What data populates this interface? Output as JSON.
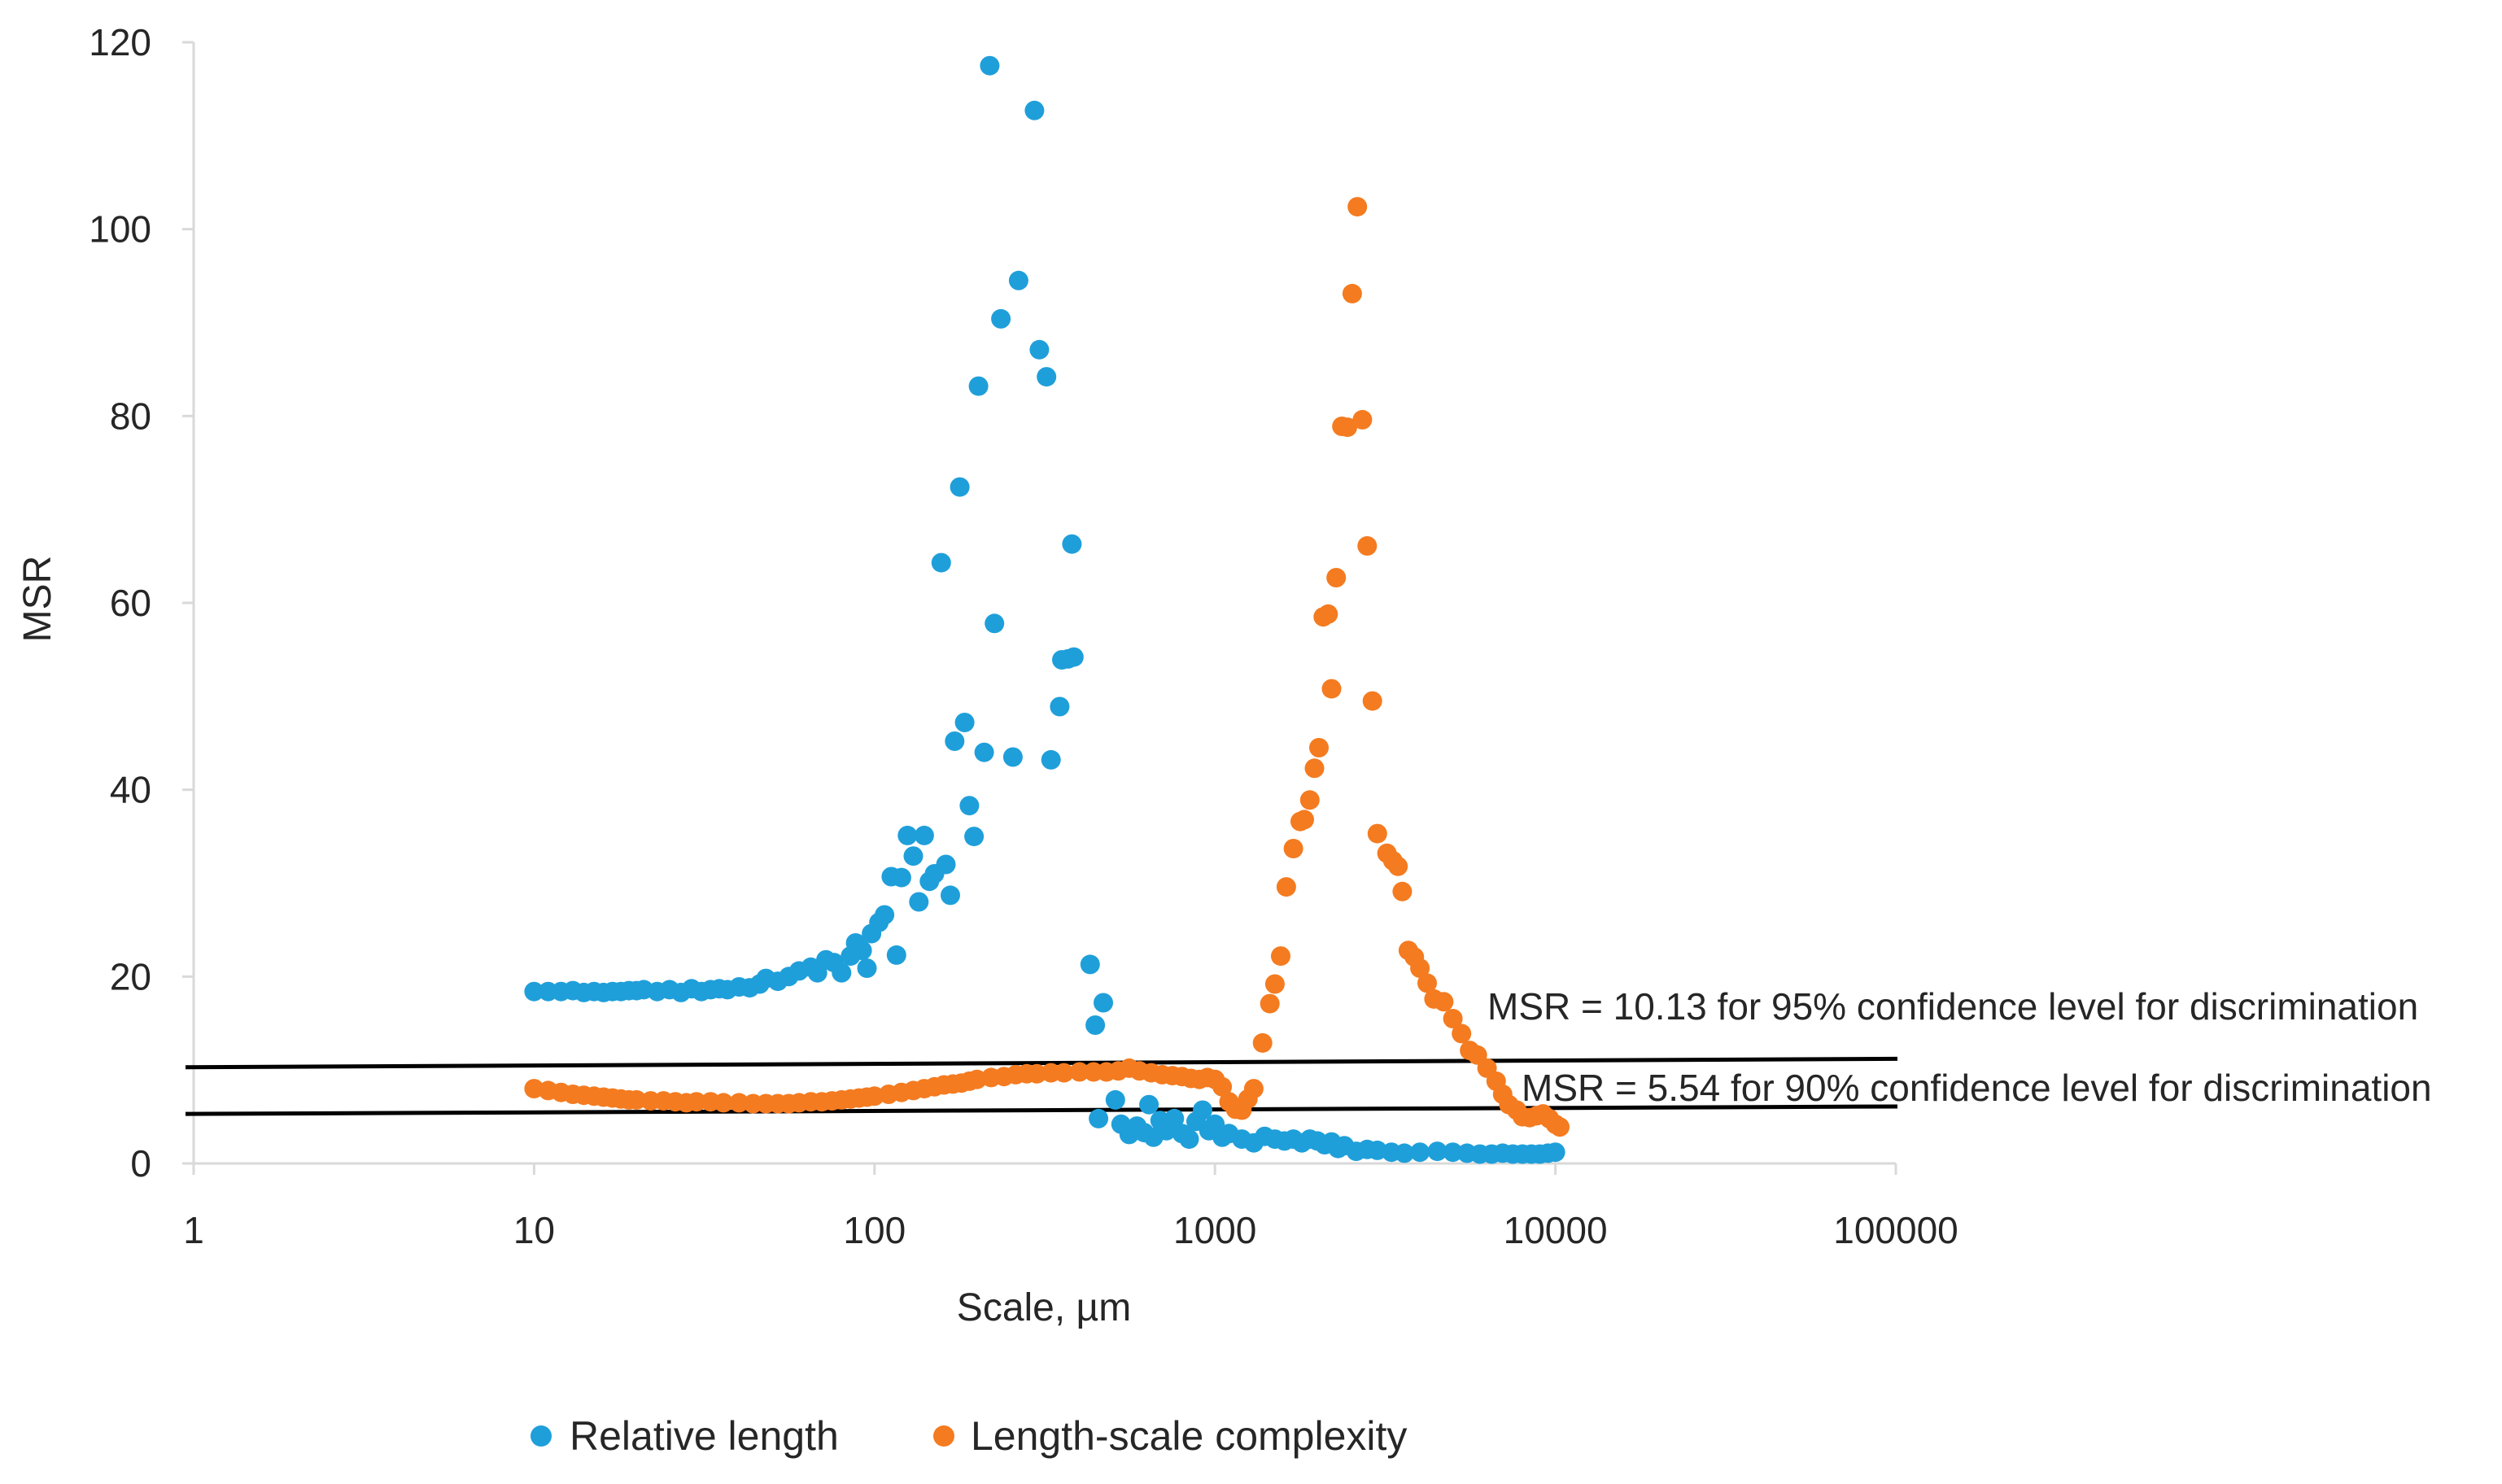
{
  "chart_data": {
    "type": "scatter",
    "title": "",
    "xlabel": "Scale, µm",
    "ylabel": "MSR",
    "xscale": "log",
    "xlim": [
      1,
      100000
    ],
    "ylim": [
      0,
      120
    ],
    "grid": false,
    "legend_position": "bottom",
    "x_ticks": [
      {
        "value": 1,
        "label": "1"
      },
      {
        "value": 10,
        "label": "10"
      },
      {
        "value": 100,
        "label": "100"
      },
      {
        "value": 1000,
        "label": "1000"
      },
      {
        "value": 10000,
        "label": "10000"
      },
      {
        "value": 100000,
        "label": "100000"
      }
    ],
    "y_ticks": [
      {
        "value": 0,
        "label": "0"
      },
      {
        "value": 20,
        "label": "20"
      },
      {
        "value": 40,
        "label": "40"
      },
      {
        "value": 60,
        "label": "60"
      },
      {
        "value": 80,
        "label": "80"
      },
      {
        "value": 100,
        "label": "100"
      },
      {
        "value": 120,
        "label": "120"
      }
    ],
    "reference_lines": [
      {
        "name": "line-95",
        "y_start": 10.3,
        "y_end": 11.2,
        "label": "MSR = 10.13 for 95% confidence level for discrimination",
        "color": "#000000"
      },
      {
        "name": "line-90",
        "y_start": 5.3,
        "y_end": 6.1,
        "label": "MSR = 5.54 for 90% confidence level for discrimination",
        "color": "#000000"
      }
    ],
    "series": [
      {
        "name": "Relative length",
        "color": "#1f9fda",
        "points": [
          [
            10,
            18.4
          ],
          [
            11,
            18.4
          ],
          [
            12,
            18.4
          ],
          [
            13,
            18.5
          ],
          [
            14,
            18.3
          ],
          [
            15,
            18.4
          ],
          [
            16,
            18.3
          ],
          [
            17,
            18.4
          ],
          [
            18,
            18.4
          ],
          [
            19,
            18.5
          ],
          [
            20,
            18.5
          ],
          [
            21,
            18.6
          ],
          [
            23,
            18.4
          ],
          [
            25,
            18.6
          ],
          [
            27,
            18.3
          ],
          [
            29,
            18.7
          ],
          [
            31,
            18.4
          ],
          [
            33,
            18.6
          ],
          [
            35,
            18.7
          ],
          [
            37,
            18.6
          ],
          [
            40,
            18.9
          ],
          [
            43,
            18.8
          ],
          [
            46,
            19.2
          ],
          [
            48,
            19.8
          ],
          [
            52,
            19.5
          ],
          [
            56,
            20.0
          ],
          [
            60,
            20.6
          ],
          [
            65,
            21.0
          ],
          [
            68,
            20.4
          ],
          [
            72,
            21.8
          ],
          [
            76,
            21.5
          ],
          [
            80,
            20.4
          ],
          [
            85,
            22.2
          ],
          [
            88,
            23.6
          ],
          [
            92,
            22.8
          ],
          [
            95,
            20.9
          ],
          [
            98,
            24.6
          ],
          [
            103,
            25.8
          ],
          [
            107,
            26.6
          ],
          [
            112,
            30.7
          ],
          [
            116,
            22.3
          ],
          [
            120,
            30.6
          ],
          [
            125,
            35.1
          ],
          [
            130,
            32.9
          ],
          [
            135,
            28.0
          ],
          [
            140,
            35.1
          ],
          [
            145,
            30.2
          ],
          [
            150,
            31.0
          ],
          [
            157,
            64.3
          ],
          [
            162,
            32.0
          ],
          [
            167,
            28.7
          ],
          [
            172,
            45.2
          ],
          [
            178,
            72.4
          ],
          [
            184,
            47.2
          ],
          [
            190,
            38.3
          ],
          [
            196,
            35.0
          ],
          [
            202,
            83.2
          ],
          [
            210,
            44.0
          ],
          [
            218,
            117.5
          ],
          [
            225,
            57.8
          ],
          [
            235,
            90.4
          ],
          [
            255,
            43.5
          ],
          [
            265,
            94.5
          ],
          [
            295,
            112.7
          ],
          [
            305,
            87.1
          ],
          [
            320,
            84.2
          ],
          [
            330,
            43.2
          ],
          [
            350,
            48.9
          ],
          [
            355,
            53.9
          ],
          [
            370,
            54.0
          ],
          [
            380,
            66.3
          ],
          [
            385,
            54.2
          ],
          [
            430,
            21.3
          ],
          [
            445,
            14.8
          ],
          [
            470,
            17.2
          ],
          [
            455,
            4.8
          ],
          [
            510,
            6.8
          ],
          [
            530,
            4.2
          ],
          [
            560,
            3.1
          ],
          [
            590,
            4.0
          ],
          [
            620,
            3.3
          ],
          [
            640,
            6.3
          ],
          [
            660,
            2.8
          ],
          [
            690,
            4.6
          ],
          [
            720,
            3.5
          ],
          [
            760,
            4.8
          ],
          [
            800,
            3.2
          ],
          [
            840,
            2.6
          ],
          [
            880,
            4.5
          ],
          [
            920,
            5.7
          ],
          [
            960,
            3.5
          ],
          [
            1000,
            4.2
          ],
          [
            1050,
            2.8
          ],
          [
            1100,
            3.2
          ],
          [
            1200,
            2.6
          ],
          [
            1300,
            2.2
          ],
          [
            1400,
            2.9
          ],
          [
            1500,
            2.6
          ],
          [
            1600,
            2.4
          ],
          [
            1700,
            2.6
          ],
          [
            1800,
            2.2
          ],
          [
            1900,
            2.6
          ],
          [
            2000,
            2.4
          ],
          [
            2100,
            2.0
          ],
          [
            2200,
            2.3
          ],
          [
            2300,
            1.6
          ],
          [
            2400,
            1.9
          ],
          [
            2600,
            1.3
          ],
          [
            2800,
            1.5
          ],
          [
            3000,
            1.4
          ],
          [
            3300,
            1.2
          ],
          [
            3600,
            1.1
          ],
          [
            4000,
            1.2
          ],
          [
            4500,
            1.3
          ],
          [
            5000,
            1.2
          ],
          [
            5500,
            1.1
          ],
          [
            6000,
            1.0
          ],
          [
            6500,
            1.0
          ],
          [
            7000,
            1.1
          ],
          [
            7500,
            1.0
          ],
          [
            8000,
            1.0
          ],
          [
            8500,
            1.0
          ],
          [
            9000,
            1.0
          ],
          [
            9500,
            1.1
          ],
          [
            10000,
            1.2
          ]
        ]
      },
      {
        "name": "Length-scale complexity",
        "color": "#f47b20",
        "points": [
          [
            10,
            8.0
          ],
          [
            11,
            7.8
          ],
          [
            12,
            7.6
          ],
          [
            13,
            7.4
          ],
          [
            14,
            7.3
          ],
          [
            15,
            7.2
          ],
          [
            16,
            7.1
          ],
          [
            17,
            7.0
          ],
          [
            18,
            6.9
          ],
          [
            19,
            6.8
          ],
          [
            20,
            6.8
          ],
          [
            22,
            6.7
          ],
          [
            24,
            6.7
          ],
          [
            26,
            6.6
          ],
          [
            28,
            6.5
          ],
          [
            30,
            6.6
          ],
          [
            33,
            6.6
          ],
          [
            36,
            6.5
          ],
          [
            40,
            6.5
          ],
          [
            44,
            6.4
          ],
          [
            48,
            6.4
          ],
          [
            52,
            6.4
          ],
          [
            56,
            6.4
          ],
          [
            60,
            6.5
          ],
          [
            65,
            6.6
          ],
          [
            70,
            6.6
          ],
          [
            75,
            6.7
          ],
          [
            80,
            6.8
          ],
          [
            85,
            6.9
          ],
          [
            90,
            7.0
          ],
          [
            95,
            7.1
          ],
          [
            100,
            7.2
          ],
          [
            110,
            7.4
          ],
          [
            120,
            7.6
          ],
          [
            130,
            7.8
          ],
          [
            140,
            8.0
          ],
          [
            150,
            8.2
          ],
          [
            160,
            8.4
          ],
          [
            170,
            8.5
          ],
          [
            180,
            8.6
          ],
          [
            190,
            8.8
          ],
          [
            200,
            9.0
          ],
          [
            220,
            9.2
          ],
          [
            240,
            9.3
          ],
          [
            260,
            9.5
          ],
          [
            280,
            9.6
          ],
          [
            300,
            9.6
          ],
          [
            330,
            9.7
          ],
          [
            360,
            9.7
          ],
          [
            400,
            9.8
          ],
          [
            440,
            9.8
          ],
          [
            480,
            9.8
          ],
          [
            520,
            9.9
          ],
          [
            560,
            10.2
          ],
          [
            600,
            9.9
          ],
          [
            650,
            9.7
          ],
          [
            700,
            9.5
          ],
          [
            750,
            9.4
          ],
          [
            800,
            9.3
          ],
          [
            850,
            9.1
          ],
          [
            900,
            9.0
          ],
          [
            950,
            9.2
          ],
          [
            1000,
            9.0
          ],
          [
            1050,
            8.2
          ],
          [
            1100,
            6.6
          ],
          [
            1150,
            5.8
          ],
          [
            1200,
            5.7
          ],
          [
            1250,
            6.9
          ],
          [
            1300,
            8.0
          ],
          [
            1380,
            12.9
          ],
          [
            1450,
            17.1
          ],
          [
            1500,
            19.2
          ],
          [
            1560,
            22.2
          ],
          [
            1620,
            29.6
          ],
          [
            1700,
            33.7
          ],
          [
            1780,
            36.6
          ],
          [
            1830,
            36.8
          ],
          [
            1900,
            38.9
          ],
          [
            1960,
            42.3
          ],
          [
            2020,
            44.5
          ],
          [
            2080,
            58.5
          ],
          [
            2150,
            58.8
          ],
          [
            2200,
            50.8
          ],
          [
            2270,
            62.7
          ],
          [
            2360,
            78.9
          ],
          [
            2450,
            78.8
          ],
          [
            2530,
            93.1
          ],
          [
            2620,
            102.4
          ],
          [
            2710,
            79.6
          ],
          [
            2800,
            66.1
          ],
          [
            2900,
            49.5
          ],
          [
            3000,
            35.3
          ],
          [
            3200,
            33.2
          ],
          [
            3330,
            32.4
          ],
          [
            3450,
            31.8
          ],
          [
            3550,
            29.1
          ],
          [
            3700,
            22.8
          ],
          [
            3850,
            22.1
          ],
          [
            4000,
            20.9
          ],
          [
            4200,
            19.3
          ],
          [
            4400,
            17.6
          ],
          [
            4700,
            17.3
          ],
          [
            5000,
            15.5
          ],
          [
            5300,
            13.9
          ],
          [
            5600,
            12.1
          ],
          [
            5900,
            11.6
          ],
          [
            6300,
            10.2
          ],
          [
            6700,
            8.8
          ],
          [
            7000,
            7.4
          ],
          [
            7300,
            6.3
          ],
          [
            7700,
            5.7
          ],
          [
            8000,
            5.0
          ],
          [
            8400,
            4.9
          ],
          [
            8800,
            5.1
          ],
          [
            9200,
            5.3
          ],
          [
            9600,
            4.8
          ],
          [
            10000,
            4.2
          ],
          [
            10300,
            3.9
          ]
        ]
      }
    ],
    "legend": [
      {
        "label": "Relative length",
        "color": "#1f9fda"
      },
      {
        "label": "Length-scale complexity",
        "color": "#f47b20"
      }
    ]
  }
}
